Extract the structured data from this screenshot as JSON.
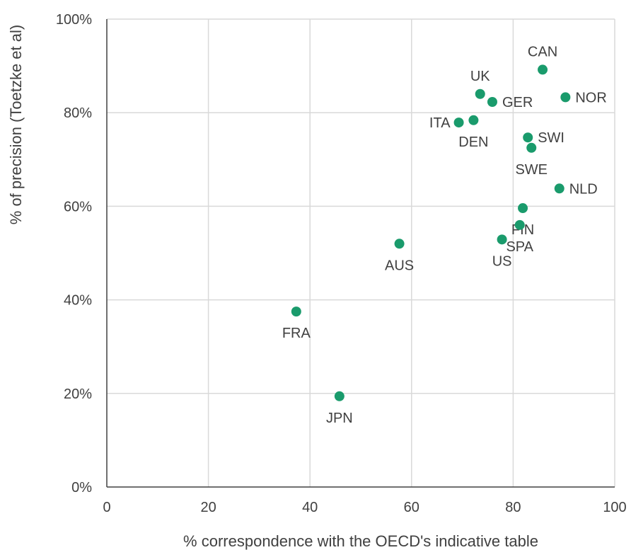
{
  "chart_data": {
    "type": "scatter",
    "xlabel": "% correspondence with the OECD's indicative table",
    "ylabel": "% of precision (Toetzke et al)",
    "xlim": [
      0,
      100
    ],
    "ylim": [
      0,
      100
    ],
    "x_ticks": [
      0,
      20,
      40,
      60,
      80,
      100
    ],
    "y_ticks": [
      "0%",
      "20%",
      "40%",
      "60%",
      "80%",
      "100%"
    ],
    "grid": true,
    "marker_color": "#1a9b6c",
    "points": [
      {
        "label": "CAN",
        "x": 85.8,
        "y": 89.2,
        "label_pos": "above"
      },
      {
        "label": "UK",
        "x": 73.5,
        "y": 84.0,
        "label_pos": "above"
      },
      {
        "label": "GER",
        "x": 75.9,
        "y": 82.3,
        "label_pos": "right"
      },
      {
        "label": "NOR",
        "x": 90.3,
        "y": 83.3,
        "label_pos": "right"
      },
      {
        "label": "ITA",
        "x": 69.3,
        "y": 77.9,
        "label_pos": "left"
      },
      {
        "label": "DEN",
        "x": 72.2,
        "y": 78.4,
        "label_pos": "below"
      },
      {
        "label": "SWI",
        "x": 82.9,
        "y": 74.7,
        "label_pos": "right"
      },
      {
        "label": "SWE",
        "x": 83.6,
        "y": 72.5,
        "label_pos": "below"
      },
      {
        "label": "NLD",
        "x": 89.1,
        "y": 63.8,
        "label_pos": "right"
      },
      {
        "label": "FIN",
        "x": 81.9,
        "y": 59.6,
        "label_pos": "below"
      },
      {
        "label": "SPA",
        "x": 81.3,
        "y": 56.0,
        "label_pos": "below"
      },
      {
        "label": "US",
        "x": 77.8,
        "y": 52.9,
        "label_pos": "below"
      },
      {
        "label": "AUS",
        "x": 57.6,
        "y": 52.0,
        "label_pos": "below"
      },
      {
        "label": "FRA",
        "x": 37.3,
        "y": 37.5,
        "label_pos": "below"
      },
      {
        "label": "JPN",
        "x": 45.8,
        "y": 19.4,
        "label_pos": "below"
      }
    ]
  }
}
